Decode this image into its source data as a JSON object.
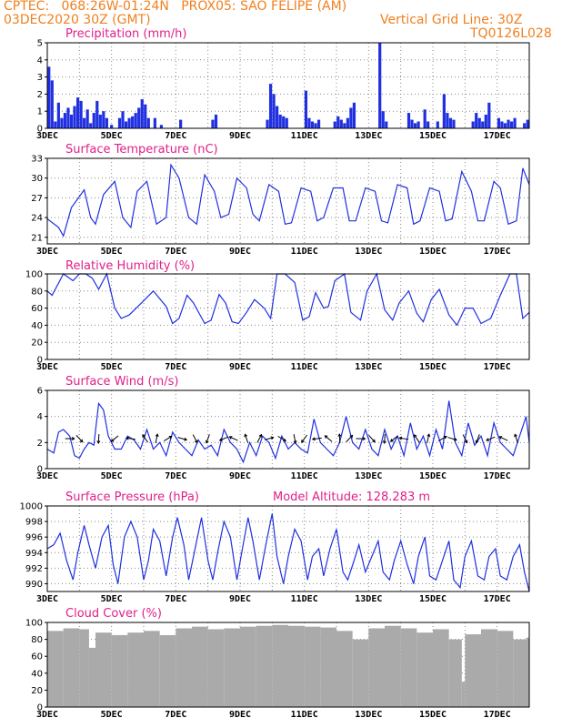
{
  "header": {
    "line1": "CPTEC:   068:26W-01:24N   PROX05: SAO FELIPE (AM)",
    "line2": "03DEC2020 30Z (GMT)",
    "grid_note": "Vertical Grid Line: 30Z",
    "code": "TQ0126L028"
  },
  "colors": {
    "header": "#f08020",
    "title": "#e0208a",
    "series": "#2030e0",
    "cloud": "#aaaaaa",
    "grid": "#888888"
  },
  "x_axis": {
    "days": 15,
    "labels": [
      "3DEC",
      "5DEC",
      "7DEC",
      "9DEC",
      "11DEC",
      "13DEC",
      "15DEC",
      "17DEC"
    ],
    "label_days": [
      0,
      2,
      4,
      6,
      8,
      10,
      12,
      14
    ]
  },
  "chart_data": [
    {
      "type": "bar",
      "title": "Precipitation (mm/h)",
      "ylim": [
        0,
        5
      ],
      "yticks": [
        0,
        1,
        2,
        3,
        4,
        5
      ],
      "grid": true,
      "x_unit": "days since 3DEC 00Z",
      "series": [
        {
          "x": [
            0.05,
            0.15,
            0.25,
            0.35,
            0.45,
            0.55,
            0.65,
            0.75,
            0.85,
            0.95,
            1.05,
            1.15,
            1.25,
            1.35,
            1.45,
            1.55,
            1.65,
            1.75,
            1.85,
            2.0,
            2.25,
            2.35,
            2.45,
            2.55,
            2.65,
            2.75,
            2.85,
            2.95,
            3.05,
            3.15,
            3.35,
            3.55,
            4.15,
            5.15,
            5.25,
            6.85,
            6.95,
            7.05,
            7.15,
            7.25,
            7.35,
            7.45,
            8.05,
            8.15,
            8.25,
            8.35,
            8.45,
            8.95,
            9.05,
            9.15,
            9.25,
            9.35,
            9.45,
            9.55,
            10.35,
            10.45,
            10.55,
            11.25,
            11.35,
            11.45,
            11.55,
            11.75,
            11.85,
            12.15,
            12.35,
            12.45,
            12.55,
            12.65,
            13.25,
            13.35,
            13.45,
            13.55,
            13.65,
            13.75,
            14.05,
            14.15,
            14.25,
            14.35,
            14.45,
            14.55,
            14.85,
            14.95
          ],
          "values": [
            3.6,
            2.8,
            0.4,
            1.5,
            0.6,
            0.9,
            1.2,
            0.8,
            1.3,
            1.8,
            1.6,
            0.6,
            1.1,
            0.3,
            0.9,
            1.6,
            0.8,
            1.0,
            0.6,
            0.2,
            0.6,
            1.0,
            0.4,
            0.6,
            0.7,
            0.9,
            1.2,
            1.7,
            1.4,
            0.6,
            0.6,
            0.2,
            0.5,
            0.5,
            0.8,
            0.5,
            2.6,
            2.0,
            1.3,
            0.8,
            0.7,
            0.6,
            2.2,
            0.6,
            0.4,
            0.3,
            0.5,
            0.4,
            0.7,
            0.5,
            0.3,
            0.6,
            1.2,
            1.5,
            5.0,
            1.0,
            0.4,
            0.9,
            0.5,
            0.3,
            0.4,
            1.1,
            0.4,
            0.4,
            2.0,
            0.9,
            0.6,
            0.5,
            0.4,
            0.9,
            0.6,
            0.4,
            0.8,
            1.5,
            0.6,
            0.4,
            0.3,
            0.5,
            0.4,
            0.6,
            0.3,
            0.5
          ]
        }
      ]
    },
    {
      "type": "line",
      "title": "Surface Temperature (nC)",
      "ylim": [
        20,
        33
      ],
      "yticks": [
        21,
        24,
        27,
        30,
        33
      ],
      "grid": true,
      "series": [
        {
          "x": [
            0,
            0.35,
            0.5,
            0.75,
            1.15,
            1.35,
            1.5,
            1.75,
            2.1,
            2.35,
            2.6,
            2.8,
            3.1,
            3.4,
            3.7,
            3.85,
            4.1,
            4.4,
            4.65,
            4.9,
            5.2,
            5.4,
            5.65,
            5.9,
            6.2,
            6.4,
            6.6,
            6.9,
            7.2,
            7.4,
            7.6,
            7.9,
            8.2,
            8.4,
            8.6,
            8.9,
            9.2,
            9.4,
            9.6,
            9.9,
            10.2,
            10.4,
            10.6,
            10.9,
            11.2,
            11.4,
            11.6,
            11.9,
            12.2,
            12.4,
            12.6,
            12.9,
            13.2,
            13.4,
            13.6,
            13.9,
            14.1,
            14.35,
            14.6,
            14.8,
            15.0
          ],
          "values": [
            23.8,
            22.5,
            21.2,
            25.5,
            28.2,
            24.0,
            23.0,
            27.5,
            29.5,
            24.0,
            22.5,
            28.0,
            29.5,
            23.0,
            24.0,
            32.0,
            30.0,
            24.0,
            23.0,
            30.5,
            28.0,
            24.0,
            24.5,
            30.0,
            28.5,
            24.5,
            23.5,
            29.0,
            28.0,
            23.0,
            23.2,
            28.5,
            28.0,
            23.5,
            24.0,
            28.5,
            28.5,
            23.5,
            23.5,
            28.5,
            28.0,
            23.5,
            23.2,
            29.0,
            28.5,
            23.0,
            23.5,
            28.5,
            28.0,
            23.5,
            23.8,
            31.0,
            28.0,
            23.5,
            23.5,
            29.5,
            28.5,
            23.0,
            23.5,
            31.5,
            29.0
          ]
        }
      ]
    },
    {
      "type": "line",
      "title": "Relative Humidity (%)",
      "ylim": [
        0,
        100
      ],
      "yticks": [
        0,
        20,
        40,
        60,
        80,
        100
      ],
      "grid": true,
      "series": [
        {
          "x": [
            0,
            0.15,
            0.5,
            0.8,
            1.0,
            1.2,
            1.4,
            1.6,
            1.85,
            2.1,
            2.3,
            2.55,
            2.9,
            3.3,
            3.7,
            3.9,
            4.1,
            4.35,
            4.55,
            4.9,
            5.1,
            5.35,
            5.55,
            5.75,
            5.95,
            6.2,
            6.45,
            6.75,
            6.95,
            7.15,
            7.4,
            7.7,
            7.95,
            8.15,
            8.35,
            8.6,
            8.75,
            8.95,
            9.25,
            9.45,
            9.75,
            9.95,
            10.25,
            10.5,
            10.75,
            10.95,
            11.25,
            11.5,
            11.7,
            11.95,
            12.2,
            12.5,
            12.75,
            13.0,
            13.25,
            13.5,
            13.8,
            14.1,
            14.4,
            14.6,
            14.8,
            15.0
          ],
          "values": [
            80,
            75,
            100,
            92,
            100,
            100,
            95,
            82,
            100,
            60,
            48,
            52,
            65,
            80,
            62,
            42,
            48,
            75,
            66,
            42,
            46,
            76,
            66,
            44,
            42,
            55,
            70,
            60,
            48,
            100,
            100,
            90,
            46,
            50,
            78,
            60,
            62,
            92,
            100,
            55,
            46,
            80,
            100,
            58,
            46,
            66,
            80,
            54,
            44,
            70,
            82,
            52,
            40,
            60,
            60,
            42,
            48,
            75,
            100,
            100,
            48,
            55
          ]
        }
      ]
    },
    {
      "type": "line",
      "title": "Surface Wind (m/s)",
      "ylim": [
        0,
        6
      ],
      "yticks": [
        0,
        2,
        4,
        6
      ],
      "grid": true,
      "series": [
        {
          "x": [
            0,
            0.2,
            0.35,
            0.5,
            0.7,
            0.85,
            1.0,
            1.15,
            1.3,
            1.45,
            1.6,
            1.75,
            1.9,
            2.1,
            2.3,
            2.5,
            2.7,
            2.9,
            3.1,
            3.3,
            3.5,
            3.7,
            3.9,
            4.1,
            4.3,
            4.5,
            4.7,
            4.9,
            5.1,
            5.3,
            5.5,
            5.7,
            5.9,
            6.1,
            6.3,
            6.5,
            6.7,
            6.9,
            7.1,
            7.3,
            7.5,
            7.7,
            7.9,
            8.1,
            8.3,
            8.5,
            8.7,
            8.9,
            9.1,
            9.3,
            9.5,
            9.7,
            9.9,
            10.1,
            10.3,
            10.5,
            10.7,
            10.9,
            11.1,
            11.3,
            11.5,
            11.7,
            11.9,
            12.1,
            12.3,
            12.5,
            12.7,
            12.9,
            13.1,
            13.3,
            13.5,
            13.7,
            13.9,
            14.1,
            14.3,
            14.5,
            14.7,
            14.9,
            15.0
          ],
          "values": [
            1.5,
            1.2,
            2.8,
            3.0,
            2.5,
            1.0,
            0.8,
            1.5,
            2.0,
            1.8,
            5.0,
            4.5,
            2.5,
            1.5,
            1.5,
            2.5,
            2.2,
            1.5,
            3.0,
            1.5,
            2.0,
            1.0,
            2.8,
            2.0,
            1.5,
            1.0,
            2.2,
            1.5,
            1.8,
            1.0,
            3.0,
            2.0,
            1.5,
            0.5,
            2.0,
            1.0,
            2.5,
            2.0,
            0.8,
            2.5,
            1.5,
            2.0,
            1.5,
            1.2,
            3.8,
            2.0,
            1.5,
            1.0,
            2.0,
            4.0,
            2.0,
            1.5,
            3.0,
            1.5,
            1.0,
            3.0,
            1.5,
            2.5,
            1.0,
            3.5,
            1.5,
            2.5,
            1.0,
            3.0,
            1.5,
            5.2,
            2.0,
            1.0,
            3.5,
            1.8,
            2.5,
            1.0,
            3.5,
            2.0,
            1.5,
            1.0,
            2.5,
            4.0,
            2.0
          ]
        }
      ],
      "arrows_x": [
        0.7,
        1.0,
        1.6,
        2.1,
        2.6,
        3.05,
        3.4,
        3.75,
        4.2,
        4.6,
        5.0,
        5.5,
        5.8,
        6.2,
        6.6,
        6.9,
        7.3,
        7.7,
        8.0,
        8.4,
        8.75,
        9.1,
        9.4,
        9.75,
        10.1,
        10.5,
        10.8,
        11.1,
        11.5,
        11.85,
        12.3,
        12.6,
        13.0,
        13.4,
        13.8,
        14.2,
        14.6
      ]
    },
    {
      "type": "line",
      "title": "Surface Pressure (hPa)",
      "annotation": "Model Altitude: 128.283  m",
      "ylim": [
        989,
        1000
      ],
      "yticks": [
        990,
        992,
        994,
        996,
        998,
        1000
      ],
      "grid": true,
      "series": [
        {
          "x": [
            0,
            0.2,
            0.4,
            0.6,
            0.8,
            0.95,
            1.15,
            1.3,
            1.5,
            1.7,
            1.9,
            2.05,
            2.2,
            2.4,
            2.6,
            2.8,
            3.0,
            3.15,
            3.3,
            3.5,
            3.7,
            3.9,
            4.05,
            4.25,
            4.4,
            4.6,
            4.8,
            5.0,
            5.15,
            5.3,
            5.5,
            5.7,
            5.9,
            6.05,
            6.25,
            6.4,
            6.6,
            6.8,
            7.0,
            7.15,
            7.35,
            7.5,
            7.7,
            7.9,
            8.1,
            8.25,
            8.45,
            8.6,
            8.8,
            9.0,
            9.2,
            9.35,
            9.55,
            9.7,
            9.9,
            10.1,
            10.3,
            10.45,
            10.65,
            10.8,
            11.0,
            11.2,
            11.4,
            11.55,
            11.75,
            11.9,
            12.1,
            12.3,
            12.5,
            12.65,
            12.85,
            13.0,
            13.2,
            13.4,
            13.6,
            13.75,
            13.95,
            14.1,
            14.3,
            14.5,
            14.7,
            14.85,
            15.0
          ],
          "values": [
            994.5,
            995.0,
            996.5,
            993.0,
            990.5,
            994.0,
            997.5,
            995.0,
            992.0,
            996.0,
            997.5,
            992.5,
            990.0,
            996.0,
            998.0,
            996.0,
            990.5,
            993.0,
            997.0,
            995.5,
            991.0,
            996.0,
            998.5,
            995.0,
            990.5,
            994.5,
            998.5,
            993.0,
            990.5,
            994.0,
            998.0,
            996.0,
            990.5,
            994.0,
            998.5,
            995.5,
            990.5,
            995.0,
            999.0,
            993.5,
            990.0,
            993.5,
            997.0,
            995.5,
            990.5,
            993.5,
            994.5,
            991.0,
            994.5,
            997.0,
            991.5,
            990.5,
            993.0,
            995.0,
            991.5,
            993.5,
            995.5,
            991.5,
            990.5,
            993.0,
            995.5,
            992.5,
            990.0,
            993.5,
            996.0,
            991.0,
            990.5,
            993.0,
            995.5,
            990.5,
            989.5,
            993.5,
            995.5,
            991.0,
            990.5,
            993.5,
            994.5,
            991.0,
            990.5,
            993.5,
            995.0,
            991.5,
            989.0
          ]
        }
      ]
    },
    {
      "type": "bar",
      "title": "Cloud Cover (%)",
      "ylim": [
        0,
        100
      ],
      "yticks": [
        0,
        20,
        40,
        60,
        80,
        100
      ],
      "grid": true,
      "series": [
        {
          "x": [
            0,
            0.5,
            1.0,
            1.3,
            1.5,
            2.0,
            2.5,
            3.0,
            3.5,
            4.0,
            4.5,
            5.0,
            5.5,
            6.0,
            6.5,
            7.0,
            7.5,
            8.0,
            8.5,
            9.0,
            9.5,
            10.0,
            10.5,
            11.0,
            11.5,
            12.0,
            12.5,
            12.9,
            13.0,
            13.5,
            14.0,
            14.5,
            14.9
          ],
          "values": [
            90,
            93,
            92,
            70,
            88,
            85,
            88,
            90,
            85,
            93,
            95,
            92,
            93,
            95,
            96,
            97,
            96,
            95,
            94,
            90,
            80,
            93,
            96,
            93,
            88,
            92,
            80,
            30,
            86,
            92,
            90,
            80,
            82
          ]
        }
      ]
    }
  ]
}
